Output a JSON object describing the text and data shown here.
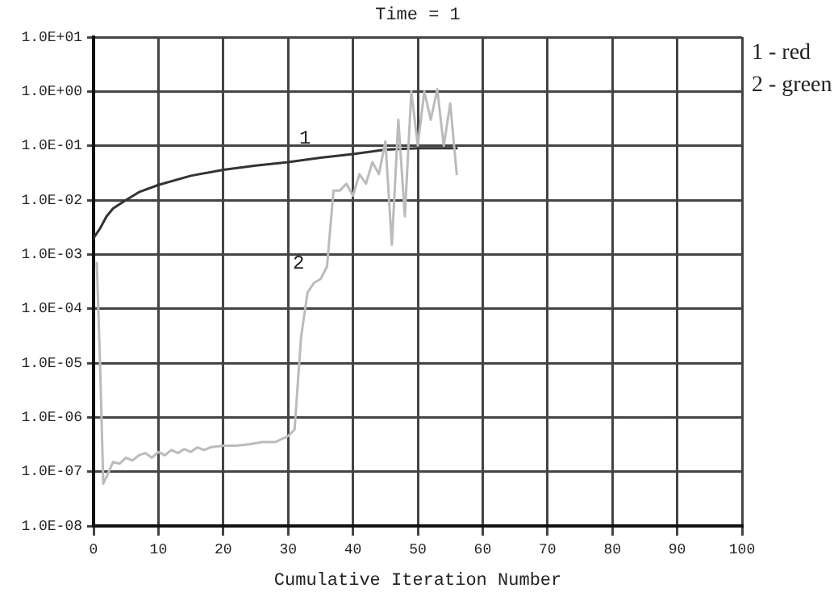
{
  "chart_data": {
    "type": "line",
    "title": "Time = 1",
    "xlabel": "Cumulative Iteration Number",
    "xlim": [
      0,
      100
    ],
    "xticks": [
      0,
      10,
      20,
      30,
      40,
      50,
      60,
      70,
      80,
      90,
      100
    ],
    "ylim": [
      1e-08,
      10
    ],
    "yticks": [
      {
        "value": 1e-08,
        "label": "1.0E-08"
      },
      {
        "value": 1e-07,
        "label": "1.0E-07"
      },
      {
        "value": 1e-06,
        "label": "1.0E-06"
      },
      {
        "value": 1e-05,
        "label": "1.0E-05"
      },
      {
        "value": 0.0001,
        "label": "1.0E-04"
      },
      {
        "value": 0.001,
        "label": "1.0E-03"
      },
      {
        "value": 0.01,
        "label": "1.0E-02"
      },
      {
        "value": 0.1,
        "label": "1.0E-01"
      },
      {
        "value": 1,
        "label": "1.0E+00"
      },
      {
        "value": 10,
        "label": "1.0E+01"
      }
    ],
    "log": "y",
    "grid": true,
    "marker": "none",
    "line_style": "solid",
    "series": [
      {
        "name": "1",
        "color": "#333333",
        "x": [
          0,
          1,
          2,
          3,
          5,
          7,
          10,
          15,
          20,
          25,
          30,
          35,
          40,
          45,
          50,
          56
        ],
        "values": [
          0.002,
          0.003,
          0.005,
          0.007,
          0.01,
          0.014,
          0.019,
          0.028,
          0.036,
          0.043,
          0.05,
          0.06,
          0.07,
          0.085,
          0.09,
          0.09
        ]
      },
      {
        "name": "2",
        "color": "#bbbbbb",
        "x": [
          0.5,
          1,
          1.5,
          2,
          3,
          4,
          5,
          6,
          7,
          8,
          9,
          10,
          11,
          12,
          13,
          14,
          15,
          16,
          17,
          18,
          20,
          22,
          24,
          26,
          28,
          30,
          31,
          32,
          33,
          34,
          35,
          36,
          37,
          38,
          39,
          40,
          41,
          42,
          43,
          44,
          45,
          46,
          47,
          48,
          49,
          50,
          51,
          52,
          53,
          54,
          55,
          56
        ],
        "values": [
          0.0007,
          1e-05,
          6e-08,
          8e-08,
          1.5e-07,
          1.4e-07,
          1.8e-07,
          1.6e-07,
          2e-07,
          2.2e-07,
          1.8e-07,
          2.3e-07,
          2e-07,
          2.5e-07,
          2.2e-07,
          2.6e-07,
          2.3e-07,
          2.8e-07,
          2.5e-07,
          2.8e-07,
          3e-07,
          3e-07,
          3.2e-07,
          3.5e-07,
          3.5e-07,
          4.5e-07,
          6e-07,
          3e-05,
          0.0002,
          0.0003,
          0.00035,
          0.0006,
          0.015,
          0.015,
          0.02,
          0.012,
          0.03,
          0.02,
          0.05,
          0.03,
          0.12,
          0.0015,
          0.3,
          0.005,
          1,
          0.1,
          1,
          0.3,
          1.1,
          0.1,
          0.6,
          0.03
        ]
      }
    ],
    "annotations": [
      "1 - red",
      "2 - green"
    ]
  }
}
